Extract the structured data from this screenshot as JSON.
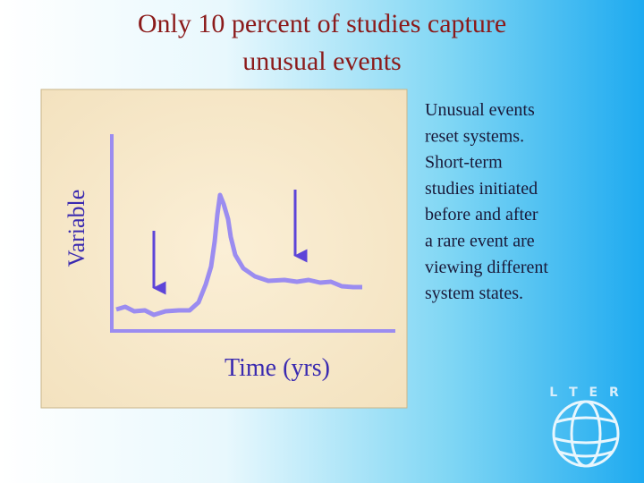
{
  "header": {
    "title_lines": [
      "Only 10 percent of studies capture",
      "unusual events"
    ]
  },
  "diagram": {
    "y_axis_label": "Variable",
    "x_axis_label": "Time (yrs)"
  },
  "side_text": {
    "lines": [
      "Unusual events",
      "reset systems.",
      "Short-term",
      "studies initiated",
      "before and after",
      "a rare event are",
      "viewing different",
      "system states."
    ]
  },
  "logo": {
    "text": "L T E R"
  }
}
